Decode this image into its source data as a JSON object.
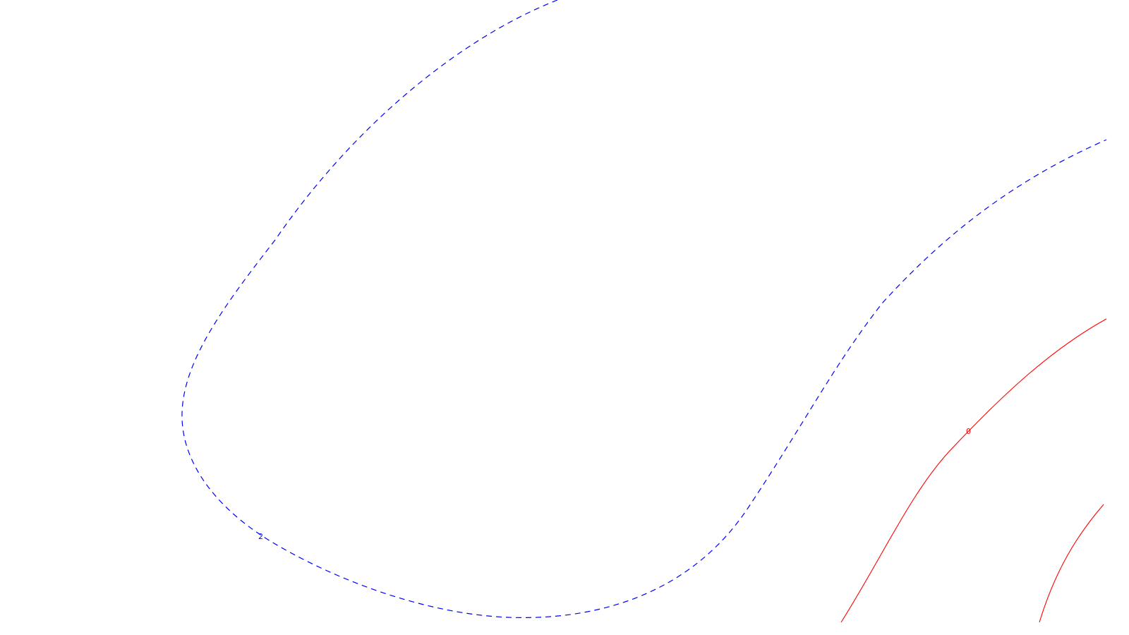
{
  "contours": [
    {
      "id": "blue-outer",
      "label": "2",
      "style": "dashed",
      "color": "#0000ff"
    },
    {
      "id": "blue-inner",
      "label": "",
      "style": "dashed",
      "color": "#0000ff"
    },
    {
      "id": "red-inner",
      "label": "0",
      "style": "solid",
      "color": "#ff0000"
    },
    {
      "id": "red-outer",
      "label": "",
      "style": "solid",
      "color": "#ff0000"
    }
  ]
}
